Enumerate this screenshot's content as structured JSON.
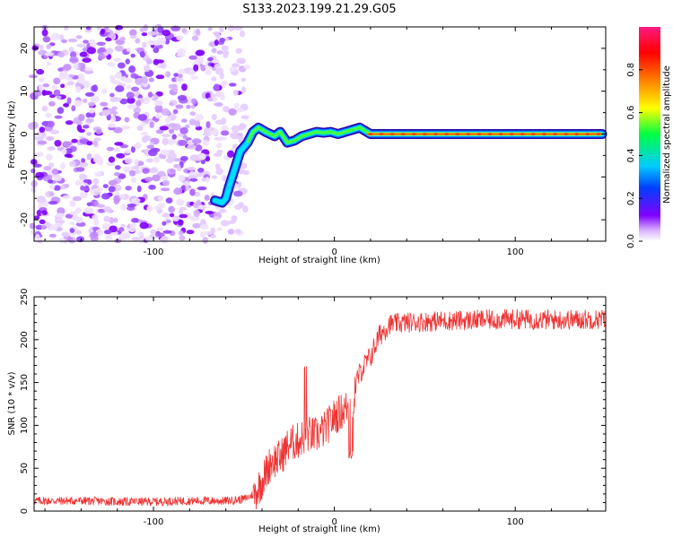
{
  "title": "S133.2023.199.21.29.G05",
  "chart_data": [
    {
      "type": "heatmap",
      "xlabel": "Height of straight line (km)",
      "ylabel": "Frequency (Hz)",
      "xlim": [
        -166,
        150
      ],
      "ylim": [
        -25,
        25
      ],
      "x_ticks": [
        -100,
        0,
        100
      ],
      "y_ticks": [
        -20,
        -10,
        0,
        10,
        20
      ],
      "colorbar": {
        "label": "Normalized spectral amplitude",
        "range": [
          0,
          1
        ],
        "ticks": [
          "0.0",
          "0.2",
          "0.4",
          "0.6",
          "0.8"
        ]
      },
      "noise_region_x": [
        -166,
        -53
      ],
      "signal_trace": {
        "x": [
          -66,
          -62,
          -60,
          -58,
          -55,
          -52,
          -48,
          -45,
          -42,
          -38,
          -33,
          -30,
          -26,
          -22,
          -18,
          -14,
          -10,
          -6,
          -2,
          2,
          6,
          10,
          14,
          20,
          40,
          70,
          100,
          130,
          148
        ],
        "y": [
          -15.5,
          -16,
          -15,
          -12,
          -8,
          -4,
          -2,
          0.5,
          1.5,
          0.5,
          -0.5,
          0.5,
          -2,
          -1.5,
          -0.5,
          0,
          0.5,
          0.3,
          0.5,
          0,
          0.5,
          1,
          1.5,
          0,
          0,
          0,
          0,
          0,
          0
        ]
      }
    },
    {
      "type": "line",
      "xlabel": "Height of straight line (km)",
      "ylabel": "SNR (10 * v/v)",
      "xlim": [
        -166,
        150
      ],
      "ylim": [
        0,
        250
      ],
      "x_ticks": [
        -100,
        0,
        100
      ],
      "y_ticks": [
        0,
        50,
        100,
        150,
        200,
        250
      ],
      "color": "#ee3333",
      "series": [
        {
          "x": [
            -166,
            -140,
            -120,
            -100,
            -80,
            -60,
            -50,
            -44,
            -40,
            -35,
            -30,
            -25,
            -20,
            -15,
            -10,
            -5,
            0,
            5,
            8,
            10,
            12,
            15,
            20,
            25,
            30,
            40,
            60,
            80,
            100,
            120,
            150
          ],
          "values": [
            12,
            12,
            11,
            11,
            12,
            12,
            14,
            20,
            35,
            58,
            62,
            78,
            82,
            90,
            88,
            96,
            110,
            118,
            122,
            125,
            150,
            165,
            180,
            205,
            218,
            220,
            222,
            223,
            224,
            223,
            224
          ]
        }
      ]
    }
  ]
}
